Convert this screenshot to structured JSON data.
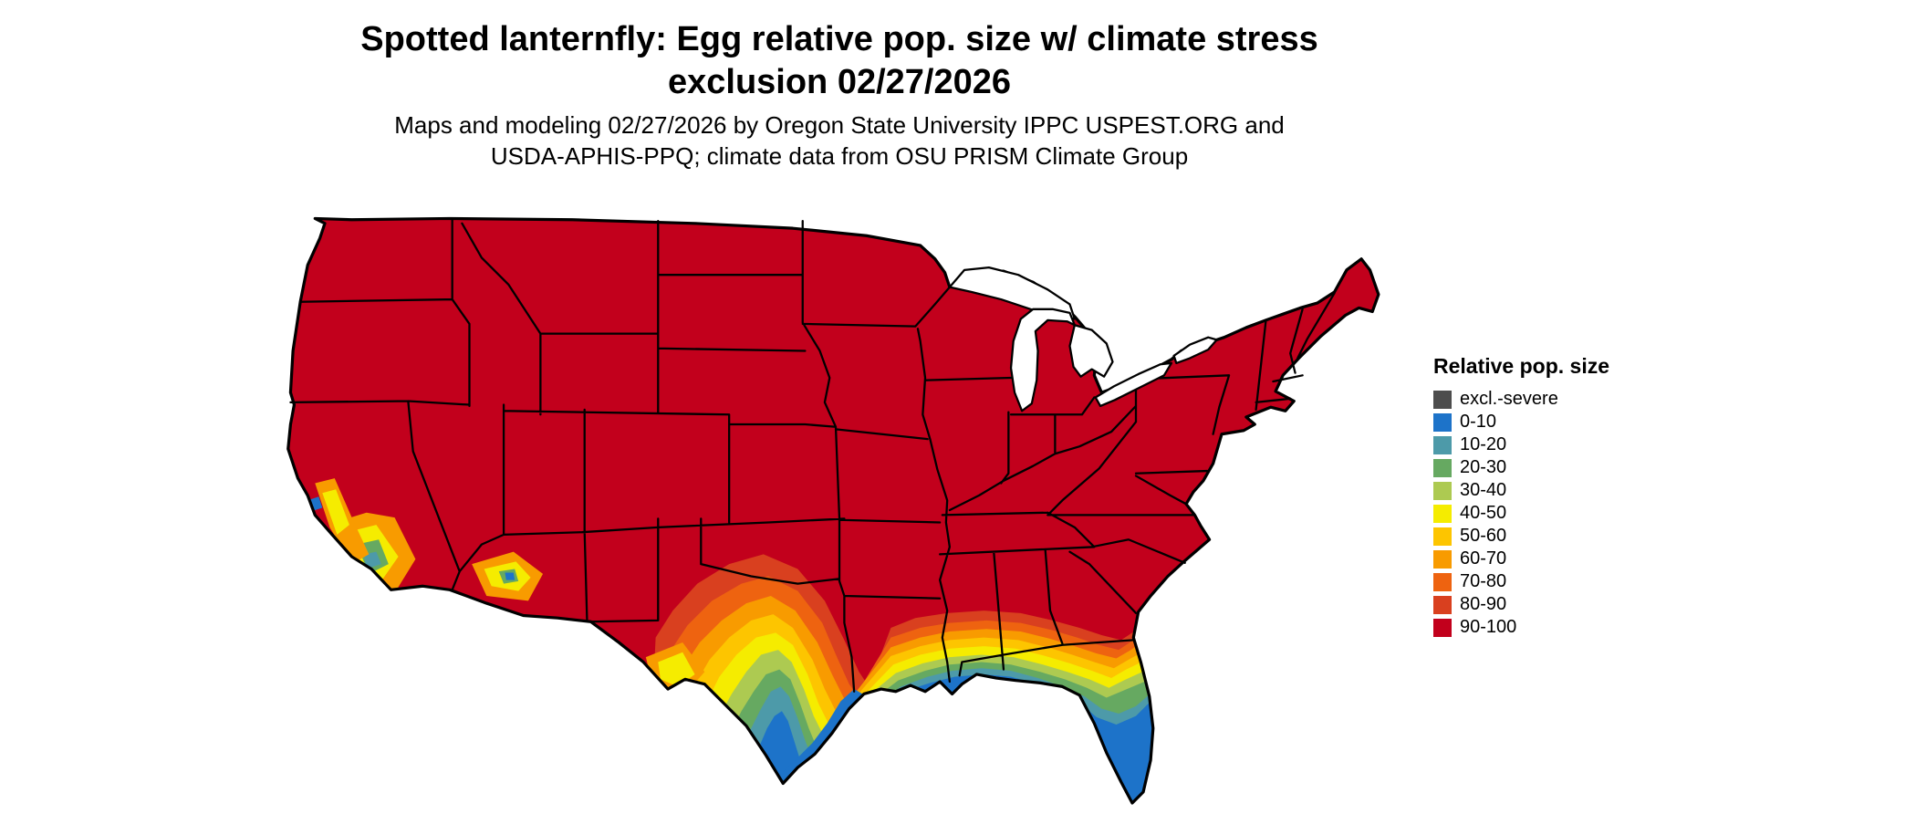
{
  "figure": {
    "title_line1": "Spotted lanternfly: Egg relative pop. size w/ climate stress",
    "title_line2": "exclusion 02/27/2026",
    "subtitle_line1": "Maps and modeling 02/27/2026 by Oregon State University IPPC USPEST.ORG and",
    "subtitle_line2": "USDA-APHIS-PPQ; climate data from OSU PRISM Climate Group"
  },
  "legend": {
    "title": "Relative pop. size",
    "items": [
      {
        "label": "excl.-severe",
        "color": "#4d4d4d"
      },
      {
        "label": "0-10",
        "color": "#1d73c9"
      },
      {
        "label": "10-20",
        "color": "#4d9aa9"
      },
      {
        "label": "20-30",
        "color": "#66a961"
      },
      {
        "label": "30-40",
        "color": "#adca51"
      },
      {
        "label": "40-50",
        "color": "#f5ec00"
      },
      {
        "label": "50-60",
        "color": "#fdc500"
      },
      {
        "label": "60-70",
        "color": "#f89b00"
      },
      {
        "label": "70-80",
        "color": "#ee6310"
      },
      {
        "label": "80-90",
        "color": "#d9401f"
      },
      {
        "label": "90-100",
        "color": "#c2001c"
      }
    ]
  },
  "map": {
    "region": "Conterminous United States",
    "land_base_class": "90-100",
    "water_color": "#ffffff",
    "boundary_color": "#000000",
    "background_color": "#ffffff"
  }
}
